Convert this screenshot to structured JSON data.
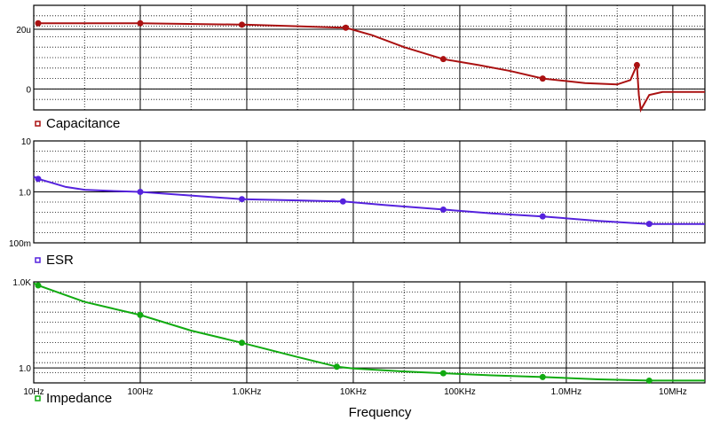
{
  "chart_data": [
    {
      "type": "line",
      "panel": "capacitance",
      "xscale": "log",
      "xlim": [
        10,
        20000000
      ],
      "ylim": [
        -7,
        28
      ],
      "y_ticks": [
        {
          "value": 20,
          "label": "20u"
        },
        {
          "value": 0,
          "label": "0"
        }
      ],
      "grid": "dotted",
      "legend_label": "Capacitance",
      "color": "#aa1111",
      "series": [
        {
          "name": "Capacitance",
          "x": [
            11,
            100,
            1000,
            3000,
            8500,
            15000,
            30000,
            70000,
            150000,
            300000,
            600000,
            1500000,
            3000000,
            4000000,
            4600000,
            4800000,
            5000000,
            6000000,
            8000000,
            20000000
          ],
          "y": [
            22,
            22,
            21.5,
            21,
            20.5,
            18,
            14,
            10,
            8,
            6,
            3.5,
            2,
            1.5,
            3,
            8,
            -2,
            -7,
            -2,
            -1,
            -1
          ],
          "markers_x": [
            11,
            100,
            900,
            8500,
            70000,
            600000,
            4600000
          ]
        }
      ]
    },
    {
      "type": "line",
      "panel": "esr",
      "xscale": "log",
      "yscale": "log",
      "xlim": [
        10,
        20000000
      ],
      "ylim": [
        0.1,
        10
      ],
      "y_ticks": [
        {
          "value": 10,
          "label": "10"
        },
        {
          "value": 1,
          "label": "1.0"
        },
        {
          "value": 0.1,
          "label": "100m"
        }
      ],
      "grid": "dotted",
      "legend_label": "ESR",
      "color": "#5522dd",
      "series": [
        {
          "name": "ESR",
          "x": [
            10,
            11,
            15,
            20,
            30,
            50,
            100,
            300,
            900,
            3000,
            8000,
            20000,
            70000,
            200000,
            600000,
            2000000,
            6000000,
            20000000
          ],
          "y": [
            2.0,
            1.8,
            1.5,
            1.25,
            1.1,
            1.05,
            1.0,
            0.85,
            0.72,
            0.68,
            0.65,
            0.55,
            0.45,
            0.38,
            0.33,
            0.27,
            0.235,
            0.235
          ],
          "markers_x": [
            11,
            100,
            900,
            8000,
            70000,
            600000,
            6000000
          ]
        }
      ]
    },
    {
      "type": "line",
      "panel": "impedance",
      "xscale": "log",
      "yscale": "log",
      "xlim": [
        10,
        20000000
      ],
      "ylim": [
        0.3,
        1000
      ],
      "y_ticks": [
        {
          "value": 1000,
          "label": "1.0K"
        },
        {
          "value": 1,
          "label": "1.0"
        }
      ],
      "x_ticks": [
        {
          "value": 10,
          "label": "10Hz"
        },
        {
          "value": 100,
          "label": "100Hz"
        },
        {
          "value": 1000,
          "label": "1.0KHz"
        },
        {
          "value": 10000,
          "label": "10KHz"
        },
        {
          "value": 100000,
          "label": "100KHz"
        },
        {
          "value": 1000000,
          "label": "1.0MHz"
        },
        {
          "value": 10000000,
          "label": "10MHz"
        }
      ],
      "xlabel": "Frequency",
      "grid": "dotted",
      "legend_label": "Impedance",
      "color": "#11aa11",
      "series": [
        {
          "name": "Impedance",
          "x": [
            10,
            11,
            30,
            100,
            300,
            900,
            3000,
            7000,
            10000,
            30000,
            70000,
            200000,
            600000,
            2000000,
            6000000,
            20000000
          ],
          "y": [
            900,
            750,
            200,
            70,
            20,
            7.5,
            2.4,
            1.1,
            0.95,
            0.75,
            0.65,
            0.55,
            0.48,
            0.4,
            0.36,
            0.36
          ],
          "markers_x": [
            11,
            100,
            900,
            7000,
            70000,
            600000,
            6000000
          ]
        }
      ]
    }
  ]
}
